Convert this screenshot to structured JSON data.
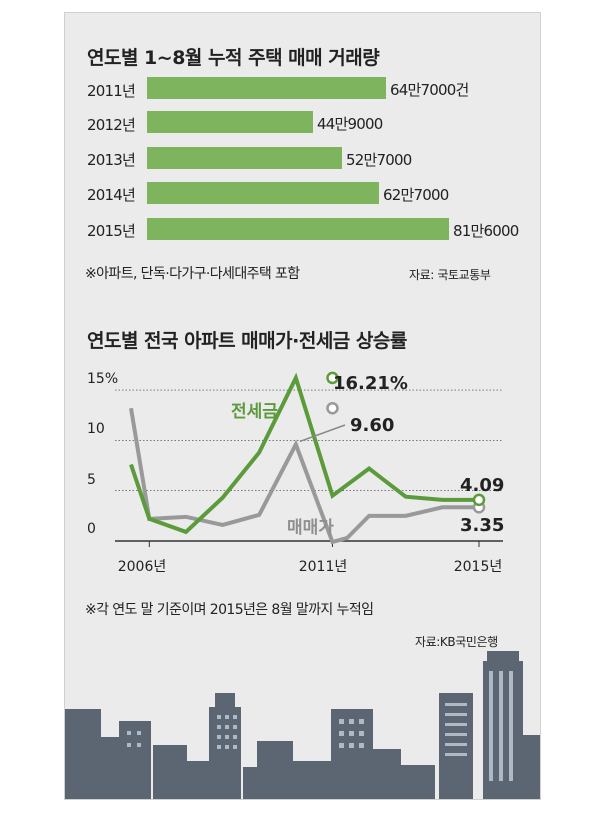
{
  "chart_data": [
    {
      "type": "bar",
      "title": "연도별 1~8월 누적 주택 매매 거래량",
      "categories": [
        "2011년",
        "2012년",
        "2013년",
        "2014년",
        "2015년"
      ],
      "values": [
        647000,
        449000,
        527000,
        627000,
        816000
      ],
      "value_labels": [
        "64만7000건",
        "44만9000",
        "52만7000",
        "62만7000",
        "81만6000"
      ],
      "note": "※아파트, 단독·다가구·다세대주택 포함",
      "source": "자료: 국토교통부",
      "bar_color": "#7fb45e"
    },
    {
      "type": "line",
      "title": "연도별 전국 아파트 매매가·전세금 상승률",
      "x": [
        2005.5,
        2006,
        2007,
        2008,
        2009,
        2010,
        2011,
        2011.4,
        2012,
        2013,
        2014,
        2015
      ],
      "xticks": [
        2006,
        2011,
        2015
      ],
      "xtick_labels": [
        "2006년",
        "2011년",
        "2015년"
      ],
      "yticks": [
        0,
        5,
        10,
        15
      ],
      "ytick_labels": [
        "0",
        "5",
        "10",
        "15%"
      ],
      "ylim": [
        0,
        15
      ],
      "series": [
        {
          "name": "전세금",
          "color": "#5b9b3b",
          "x": [
            2005.5,
            2006,
            2007,
            2008,
            2009,
            2010,
            2011,
            2012,
            2013,
            2014,
            2015
          ],
          "values": [
            7.6,
            2.2,
            0.9,
            4.3,
            8.8,
            16.21,
            4.5,
            7.2,
            4.4,
            4.09,
            4.09
          ],
          "endpoint_x": [
            2011,
            2015
          ]
        },
        {
          "name": "매매가",
          "color": "#999999",
          "x": [
            2005.5,
            2006,
            2007,
            2008,
            2009,
            2010,
            2011,
            2011.4,
            2012,
            2013,
            2014,
            2015
          ],
          "values": [
            13.2,
            2.2,
            2.4,
            1.6,
            2.6,
            9.6,
            -0.1,
            0.3,
            2.5,
            2.5,
            3.35,
            3.35
          ],
          "endpoint_x": [
            2011,
            2015
          ]
        }
      ],
      "annotations": {
        "jeonse_peak": "16.21%",
        "maemae_peak": "9.60",
        "jeonse_end": "4.09",
        "maemae_end": "3.35"
      },
      "note": "※각 연도 말 기준이며 2015년은 8월 말까지 누적임",
      "source": "자료:KB국민은행"
    }
  ],
  "colors": {
    "panel_bg": "#ebebeb",
    "building": "#5c6572",
    "window": "#aeb9c6"
  }
}
